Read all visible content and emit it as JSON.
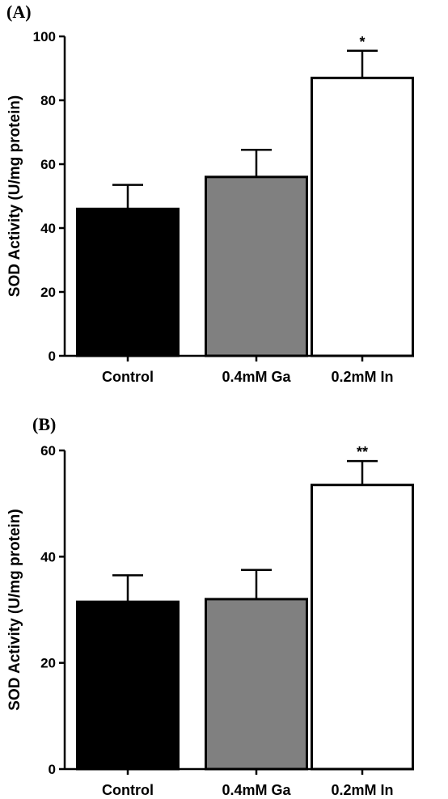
{
  "chart_data": [
    {
      "type": "bar",
      "panel_label": "(A)",
      "title": "",
      "xlabel": "",
      "ylabel": "SOD Activity (U/mg protein)",
      "ylim": [
        0,
        100
      ],
      "yticks": [
        0,
        20,
        40,
        60,
        80,
        100
      ],
      "categories": [
        "Control",
        "0.4mM Ga",
        "0.2mM In"
      ],
      "values": [
        46,
        56,
        87
      ],
      "errors": [
        7.5,
        8.5,
        8.5
      ],
      "bar_colors": [
        "#000000",
        "#808080",
        "#ffffff"
      ],
      "annotations": [
        "",
        "",
        "*"
      ],
      "grid": false
    },
    {
      "type": "bar",
      "panel_label": "(B)",
      "title": "",
      "xlabel": "",
      "ylabel": "SOD Activity (U/mg protein)",
      "ylim": [
        0,
        60
      ],
      "yticks": [
        0,
        20,
        40,
        60
      ],
      "categories": [
        "Control",
        "0.4mM Ga",
        "0.2mM In"
      ],
      "values": [
        31.5,
        32,
        53.5
      ],
      "errors": [
        5,
        5.5,
        4.5
      ],
      "bar_colors": [
        "#000000",
        "#808080",
        "#ffffff"
      ],
      "annotations": [
        "",
        "",
        "**"
      ],
      "grid": false
    }
  ]
}
